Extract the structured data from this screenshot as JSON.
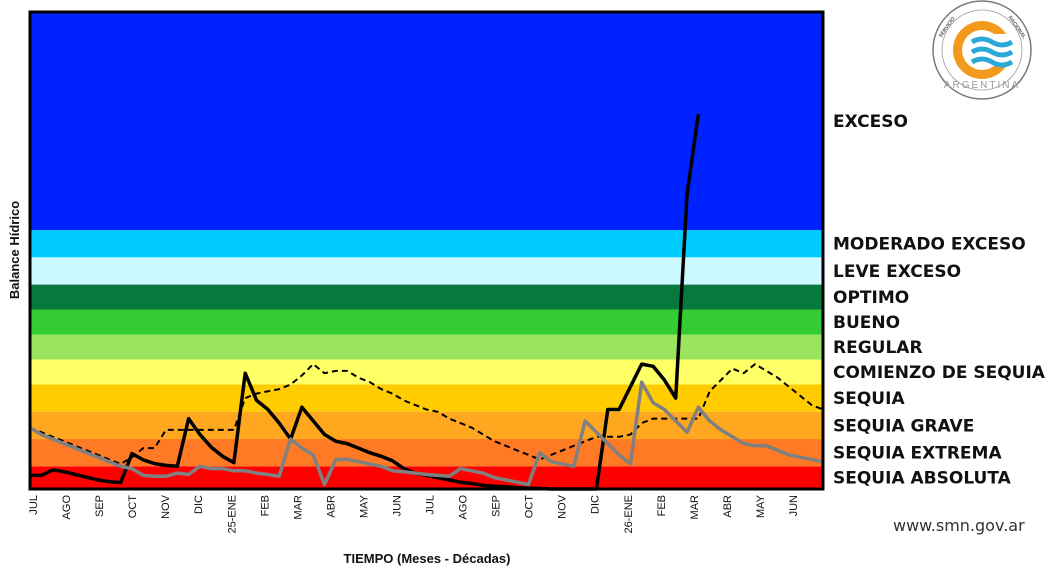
{
  "chart_data": {
    "type": "line",
    "ylabel": "Balance Hídrico",
    "xlabel": "TIEMPO (Meses - Décadas)",
    "categories": [
      "JUL",
      "AGO",
      "SEP",
      "OCT",
      "NOV",
      "DIC",
      "25-ENE",
      "FEB",
      "MAR",
      "ABR",
      "MAY",
      "JUN",
      "JUL",
      "AGO",
      "SEP",
      "OCT",
      "NOV",
      "DIC",
      "26-ENE",
      "FEB",
      "MAR",
      "ABR",
      "MAY",
      "JUN"
    ],
    "x_range": [
      0,
      70
    ],
    "ylim": [
      0,
      10.5
    ],
    "grid": false,
    "bands": [
      {
        "label": "SEQUIA ABSOLUTA",
        "from": 0,
        "to": 0.5,
        "color": "#ff0000"
      },
      {
        "label": "SEQUIA EXTREMA",
        "from": 0.5,
        "to": 1.1,
        "color": "#ff7a24"
      },
      {
        "label": "SEQUIA GRAVE",
        "from": 1.1,
        "to": 1.7,
        "color": "#ffa81f"
      },
      {
        "label": "SEQUIA",
        "from": 1.7,
        "to": 2.3,
        "color": "#ffcc00"
      },
      {
        "label": "COMIENZO DE SEQUIA",
        "from": 2.3,
        "to": 2.85,
        "color": "#ffff66"
      },
      {
        "label": "REGULAR",
        "from": 2.85,
        "to": 3.4,
        "color": "#99e65e"
      },
      {
        "label": "BUENO",
        "from": 3.4,
        "to": 3.95,
        "color": "#33cc33"
      },
      {
        "label": "OPTIMO",
        "from": 3.95,
        "to": 4.5,
        "color": "#067a3c"
      },
      {
        "label": "LEVE EXCESO",
        "from": 4.5,
        "to": 5.1,
        "color": "#ccf8ff"
      },
      {
        "label": "MODERADO EXCESO",
        "from": 5.1,
        "to": 5.7,
        "color": "#00ccff"
      },
      {
        "label": "EXCESO",
        "from": 5.7,
        "to": 10.5,
        "color": "#0022ff"
      }
    ],
    "series": [
      {
        "style": "dashed",
        "color": "#000000",
        "x": [
          0,
          1,
          2,
          3,
          4,
          5,
          6,
          7,
          8,
          9,
          10,
          11,
          12,
          13,
          14,
          15,
          16,
          17,
          18,
          19,
          20,
          21,
          22,
          23,
          24,
          25,
          26,
          27,
          28,
          29,
          30,
          31,
          32,
          33,
          34,
          35,
          36,
          37,
          38,
          39,
          40,
          41,
          42,
          43,
          44,
          45,
          46,
          47,
          48,
          49,
          50,
          51,
          52,
          53,
          54,
          55,
          56,
          57,
          58,
          59,
          60,
          61,
          62,
          63,
          64,
          65,
          66,
          67,
          68,
          69,
          70
        ],
        "values": [
          1.35,
          1.25,
          1.15,
          1.05,
          0.95,
          0.85,
          0.75,
          0.65,
          0.55,
          0.7,
          0.9,
          0.9,
          1.3,
          1.3,
          1.3,
          1.3,
          1.3,
          1.3,
          1.3,
          2.0,
          2.1,
          2.15,
          2.2,
          2.3,
          2.5,
          2.75,
          2.55,
          2.6,
          2.6,
          2.45,
          2.35,
          2.2,
          2.1,
          1.95,
          1.85,
          1.75,
          1.7,
          1.55,
          1.45,
          1.35,
          1.2,
          1.05,
          0.95,
          0.85,
          0.75,
          0.65,
          0.75,
          0.85,
          0.95,
          1.05,
          1.15,
          1.15,
          1.15,
          1.2,
          1.45,
          1.55,
          1.55,
          1.55,
          1.55,
          1.55,
          2.15,
          2.4,
          2.65,
          2.55,
          2.75,
          2.6,
          2.45,
          2.25,
          2.05,
          1.85,
          1.75
        ]
      },
      {
        "style": "solid",
        "color": "#000000",
        "x": [
          0,
          1,
          2,
          3,
          4,
          5,
          6,
          7,
          8,
          9,
          10,
          11,
          12,
          13,
          14,
          15,
          16,
          17,
          18,
          19,
          20,
          21,
          22,
          23,
          24,
          25,
          26,
          27,
          28,
          29,
          30,
          31,
          32,
          33,
          34,
          35,
          36,
          37,
          38,
          39,
          40,
          41,
          42,
          43,
          44,
          45,
          46,
          47,
          48,
          49,
          50,
          51,
          52,
          53,
          54,
          55,
          56,
          57,
          58,
          59
        ],
        "values": [
          0.3,
          0.3,
          0.42,
          0.38,
          0.32,
          0.26,
          0.2,
          0.16,
          0.14,
          0.78,
          0.64,
          0.56,
          0.52,
          0.5,
          1.55,
          1.2,
          0.92,
          0.72,
          0.58,
          2.55,
          1.95,
          1.75,
          1.45,
          1.1,
          1.8,
          1.5,
          1.2,
          1.05,
          1.0,
          0.9,
          0.8,
          0.72,
          0.62,
          0.45,
          0.35,
          0.3,
          0.25,
          0.2,
          0.15,
          0.12,
          0.08,
          0.06,
          0.05,
          0.03,
          0.02,
          0.01,
          0.0,
          0.0,
          0.0,
          0.0,
          0.0,
          1.75,
          1.75,
          2.25,
          2.75,
          2.7,
          2.4,
          2.0,
          6.5,
          8.25
        ]
      },
      {
        "style": "solid",
        "color": "#808080",
        "x": [
          0,
          1,
          2,
          3,
          4,
          5,
          6,
          7,
          8,
          9,
          10,
          11,
          12,
          13,
          14,
          15,
          16,
          17,
          18,
          19,
          20,
          21,
          22,
          23,
          24,
          25,
          26,
          27,
          28,
          29,
          30,
          31,
          32,
          33,
          34,
          35,
          36,
          37,
          38,
          39,
          40,
          41,
          42,
          43,
          44,
          45,
          46,
          47,
          48,
          49,
          50,
          51,
          52,
          53,
          54,
          55,
          56,
          57,
          58,
          59,
          60,
          61,
          62,
          63,
          64,
          65,
          66,
          67,
          68,
          69,
          70
        ],
        "values": [
          1.35,
          1.2,
          1.1,
          1.0,
          0.9,
          0.8,
          0.7,
          0.6,
          0.5,
          0.45,
          0.3,
          0.28,
          0.28,
          0.35,
          0.32,
          0.5,
          0.45,
          0.45,
          0.4,
          0.4,
          0.35,
          0.32,
          0.28,
          1.1,
          0.9,
          0.75,
          0.1,
          0.65,
          0.65,
          0.6,
          0.55,
          0.5,
          0.4,
          0.38,
          0.35,
          0.32,
          0.3,
          0.28,
          0.45,
          0.4,
          0.35,
          0.25,
          0.2,
          0.15,
          0.1,
          0.8,
          0.6,
          0.55,
          0.5,
          1.5,
          1.25,
          1.0,
          0.75,
          0.55,
          2.35,
          1.9,
          1.75,
          1.5,
          1.25,
          1.8,
          1.5,
          1.3,
          1.15,
          1.0,
          0.95,
          0.95,
          0.85,
          0.75,
          0.7,
          0.65,
          0.6
        ]
      }
    ]
  },
  "website": "www.smn.gov.ar",
  "logo": {
    "text_bottom": "ARGENTINA",
    "text_left": "SERVICIO",
    "text_right": "NACIONAL"
  }
}
